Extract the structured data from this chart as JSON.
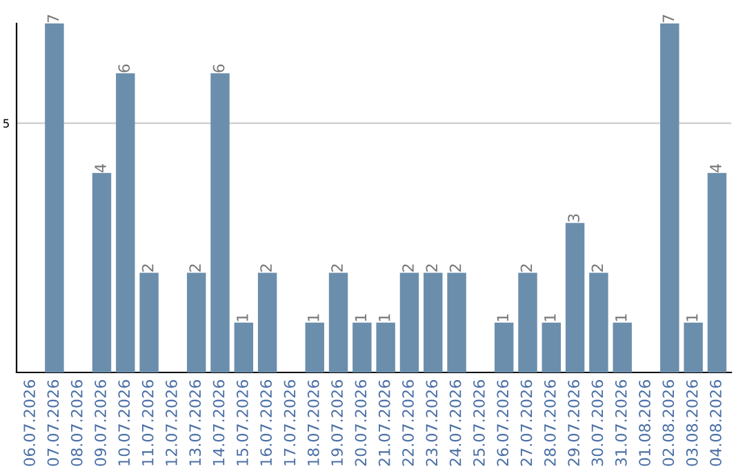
{
  "chart_data": {
    "type": "bar",
    "categories": [
      "06.07.2026",
      "07.07.2026",
      "08.07.2026",
      "09.07.2026",
      "10.07.2026",
      "11.07.2026",
      "12.07.2026",
      "13.07.2026",
      "14.07.2026",
      "15.07.2026",
      "16.07.2026",
      "17.07.2026",
      "18.07.2026",
      "19.07.2026",
      "20.07.2026",
      "21.07.2026",
      "22.07.2026",
      "23.07.2026",
      "24.07.2026",
      "25.07.2026",
      "26.07.2026",
      "27.07.2026",
      "28.07.2026",
      "29.07.2026",
      "30.07.2026",
      "31.07.2026",
      "01.08.2026",
      "02.08.2026",
      "03.08.2026",
      "04.08.2026"
    ],
    "values": [
      0,
      7,
      0,
      4,
      6,
      2,
      0,
      2,
      6,
      1,
      2,
      0,
      1,
      2,
      1,
      1,
      2,
      2,
      2,
      0,
      1,
      2,
      1,
      3,
      2,
      1,
      0,
      7,
      1,
      4
    ],
    "value_labels": [
      null,
      "7",
      null,
      "4",
      "6",
      "2",
      null,
      "2",
      "6",
      "1",
      "2",
      null,
      "1",
      "2",
      "1",
      "1",
      "2",
      "2",
      "2",
      null,
      "1",
      "2",
      "1",
      "3",
      "2",
      "1",
      null,
      "7",
      "1",
      "4"
    ],
    "color": "#6b8eac",
    "ylim": [
      0,
      7
    ],
    "yticks": [
      5
    ],
    "grid": "y"
  }
}
